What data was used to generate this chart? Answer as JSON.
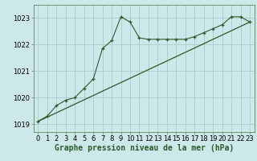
{
  "title": "Graphe pression niveau de la mer (hPa)",
  "background_color": "#cce8e8",
  "grid_color": "#aacccc",
  "line_color": "#2d5a2d",
  "xlim": [
    -0.5,
    23.5
  ],
  "ylim": [
    1018.7,
    1023.5
  ],
  "yticks": [
    1019,
    1020,
    1021,
    1022,
    1023
  ],
  "xticks": [
    0,
    1,
    2,
    3,
    4,
    5,
    6,
    7,
    8,
    9,
    10,
    11,
    12,
    13,
    14,
    15,
    16,
    17,
    18,
    19,
    20,
    21,
    22,
    23
  ],
  "series1_x": [
    0,
    1,
    2,
    3,
    4,
    5,
    6,
    7,
    8,
    9,
    10,
    11,
    12,
    13,
    14,
    15,
    16,
    17,
    18,
    19,
    20,
    21,
    22,
    23
  ],
  "series1_y": [
    1019.1,
    1019.3,
    1019.7,
    1019.9,
    1020.0,
    1020.35,
    1020.7,
    1021.85,
    1022.15,
    1023.05,
    1022.85,
    1022.25,
    1022.2,
    1022.2,
    1022.2,
    1022.2,
    1022.2,
    1022.3,
    1022.45,
    1022.6,
    1022.75,
    1023.05,
    1023.05,
    1022.85
  ],
  "trend_x": [
    0,
    23
  ],
  "trend_y": [
    1019.1,
    1022.85
  ],
  "xlabel_fontsize": 7,
  "tick_fontsize": 6,
  "title_fontsize": 7
}
